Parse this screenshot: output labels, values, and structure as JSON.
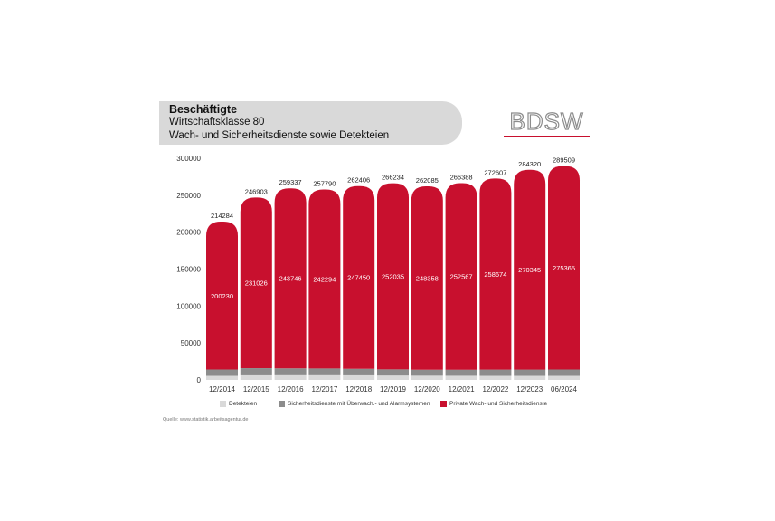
{
  "header": {
    "title": "Beschäftigte",
    "line2": "Wirtschaftsklasse 80",
    "line3": "Wach- und Sicherheitsdienste sowie Detekteien"
  },
  "logo": {
    "text": "BDSW"
  },
  "source": "Quelle: www.statistik.arbeitsagentur.de",
  "colors": {
    "detekteien": "#d9d9d9",
    "alarmsysteme": "#8c8c8c",
    "private": "#c8102e",
    "title_box": "#d9d9d9"
  },
  "chart_data": {
    "type": "bar",
    "stacked": true,
    "categories": [
      "12/2014",
      "12/2015",
      "12/2016",
      "12/2017",
      "12/2018",
      "12/2019",
      "12/2020",
      "12/2021",
      "12/2022",
      "12/2023",
      "06/2024"
    ],
    "totals": [
      214284,
      246903,
      259337,
      257790,
      262406,
      266234,
      262085,
      266388,
      272607,
      284320,
      289509
    ],
    "series": [
      {
        "name": "Detekteien",
        "values": [
          5500,
          6200,
          6300,
          6300,
          6200,
          5900,
          5700,
          5600,
          5500,
          5500,
          5500
        ]
      },
      {
        "name": "Sicherheitsdienste mit Überwach.- und Alarmsystemen",
        "values": [
          8554,
          9677,
          9291,
          9196,
          8756,
          8299,
          8027,
          8221,
          8433,
          8475,
          8644
        ]
      },
      {
        "name": "Private Wach- und Sicherheitsdienste",
        "values": [
          200230,
          231026,
          243746,
          242294,
          247450,
          252035,
          248358,
          252567,
          258674,
          270345,
          275365
        ]
      }
    ],
    "yticks": [
      "0",
      "50000",
      "100000",
      "150000",
      "200000",
      "250000",
      "300000"
    ],
    "ylim": [
      0,
      300000
    ],
    "legend_position": "bottom",
    "grid": false
  }
}
